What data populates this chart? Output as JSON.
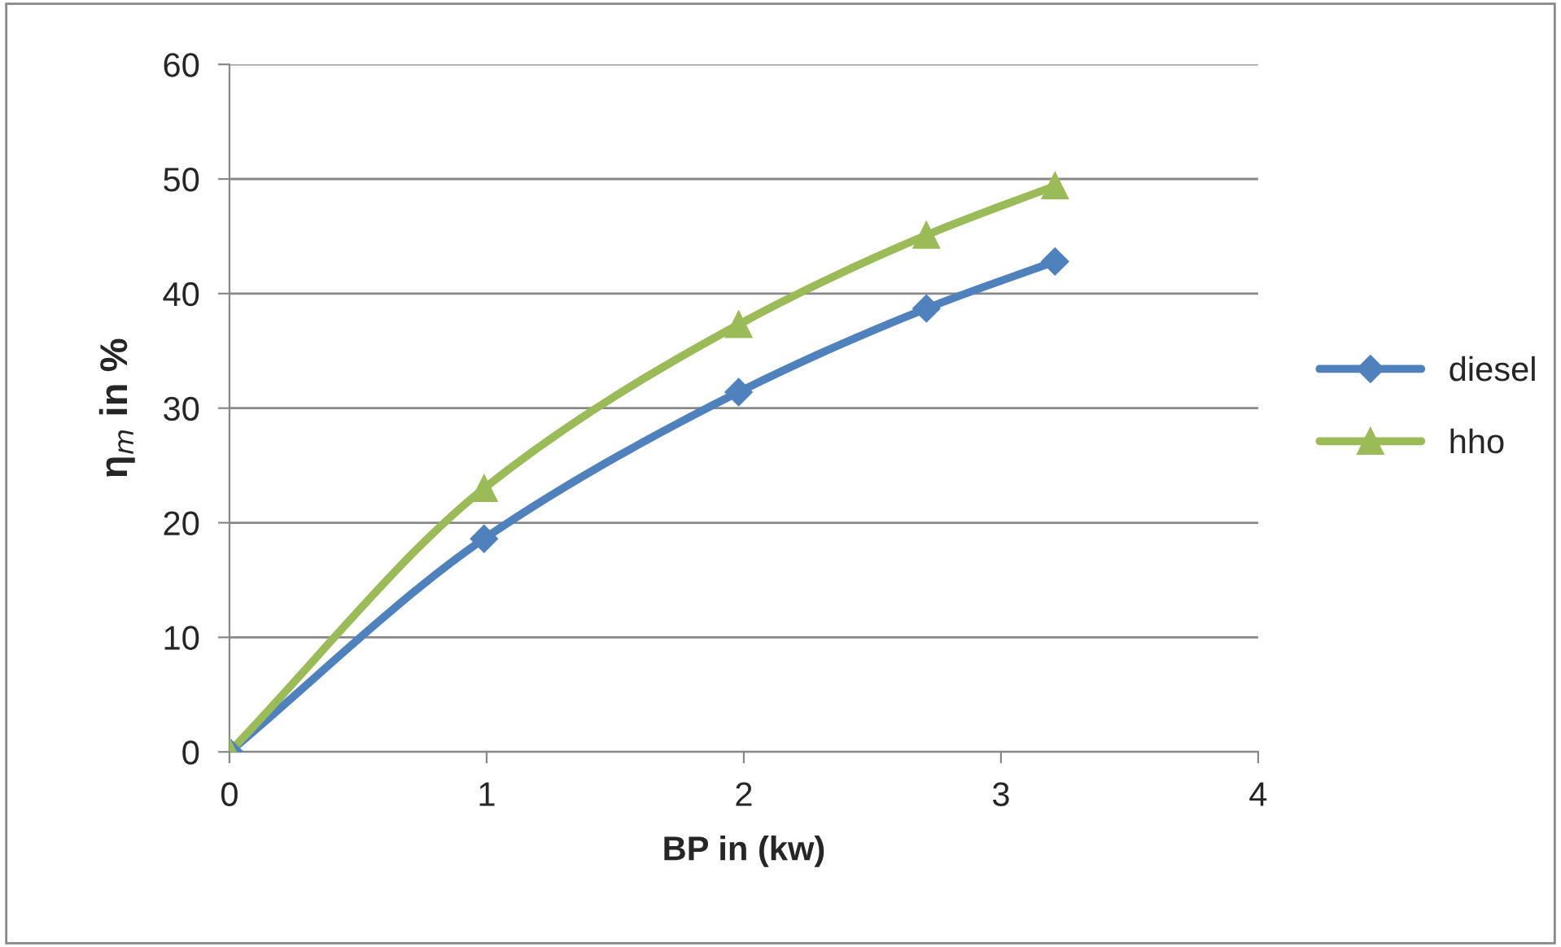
{
  "chart_data": {
    "type": "line",
    "xlabel": "BP in (kw)",
    "ylabel": "η$_{m}$ in %",
    "xlim": [
      0,
      4
    ],
    "xticks": [
      0,
      1,
      2,
      3,
      4
    ],
    "ylim": [
      0,
      60
    ],
    "yticks": [
      0,
      10,
      20,
      30,
      40,
      50,
      60
    ],
    "grid": "y",
    "legend": "right",
    "line_style": "solid",
    "series": [
      {
        "name": "diesel",
        "color": "#4f81bd",
        "marker": "diamond",
        "x": [
          0,
          0.99,
          1.98,
          2.71,
          3.21
        ],
        "values": [
          0,
          18.6,
          31.4,
          38.7,
          42.8
        ]
      },
      {
        "name": "hho",
        "color": "#9bbb59",
        "marker": "triangle",
        "x": [
          0,
          0.99,
          1.98,
          2.71,
          3.21
        ],
        "values": [
          0,
          23.0,
          37.3,
          45.1,
          49.4
        ]
      }
    ]
  }
}
